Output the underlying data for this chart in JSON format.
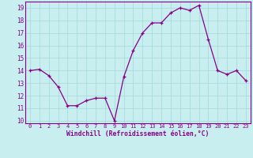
{
  "x": [
    0,
    1,
    2,
    3,
    4,
    5,
    6,
    7,
    8,
    9,
    10,
    11,
    12,
    13,
    14,
    15,
    16,
    17,
    18,
    19,
    20,
    21,
    22,
    23
  ],
  "y": [
    14.0,
    14.1,
    13.6,
    12.7,
    11.2,
    11.2,
    11.6,
    11.8,
    11.8,
    10.0,
    13.5,
    15.6,
    17.0,
    17.8,
    17.8,
    18.6,
    19.0,
    18.8,
    19.2,
    16.5,
    14.0,
    13.7,
    14.0,
    13.2
  ],
  "xlim": [
    -0.5,
    23.5
  ],
  "ylim": [
    9.8,
    19.5
  ],
  "yticks": [
    10,
    11,
    12,
    13,
    14,
    15,
    16,
    17,
    18,
    19
  ],
  "xticks": [
    0,
    1,
    2,
    3,
    4,
    5,
    6,
    7,
    8,
    9,
    10,
    11,
    12,
    13,
    14,
    15,
    16,
    17,
    18,
    19,
    20,
    21,
    22,
    23
  ],
  "xlabel": "Windchill (Refroidissement éolien,°C)",
  "line_color": "#880088",
  "marker": "+",
  "bg_color": "#c8eef0",
  "grid_color": "#aadddd",
  "tick_color": "#880088",
  "label_color": "#880088",
  "spine_color": "#880088"
}
